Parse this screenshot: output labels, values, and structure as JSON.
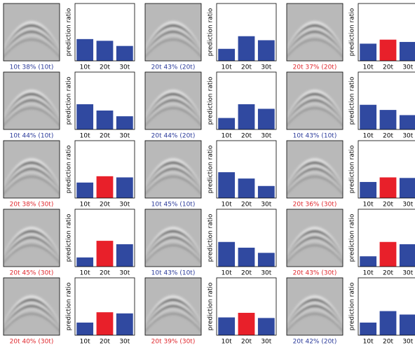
{
  "chart_data": [
    {
      "type": "bar",
      "caption": "10t 38% (10t)",
      "caption_color": "#2a3a9a",
      "ylabel": "prediction ratio",
      "categories": [
        "10t",
        "20t",
        "30t"
      ],
      "values": [
        0.38,
        0.35,
        0.26
      ],
      "colors": [
        "#3049a0",
        "#3049a0",
        "#3049a0"
      ],
      "ylim": [
        0,
        1
      ]
    },
    {
      "type": "bar",
      "caption": "20t 43% (20t)",
      "caption_color": "#2a3a9a",
      "ylabel": "prediction ratio",
      "categories": [
        "10t",
        "20t",
        "30t"
      ],
      "values": [
        0.21,
        0.43,
        0.36
      ],
      "colors": [
        "#3049a0",
        "#3049a0",
        "#3049a0"
      ],
      "ylim": [
        0,
        1
      ]
    },
    {
      "type": "bar",
      "caption": "20t 37% (20t)",
      "caption_color": "#e0282e",
      "ylabel": "prediction ratio",
      "categories": [
        "10t",
        "20t",
        "30t"
      ],
      "values": [
        0.3,
        0.37,
        0.33
      ],
      "colors": [
        "#3049a0",
        "#e8202a",
        "#3049a0"
      ],
      "ylim": [
        0,
        1
      ]
    },
    {
      "type": "bar",
      "caption": "10t 44% (10t)",
      "caption_color": "#2a3a9a",
      "ylabel": "prediction ratio",
      "categories": [
        "10t",
        "20t",
        "30t"
      ],
      "values": [
        0.44,
        0.33,
        0.23
      ],
      "colors": [
        "#3049a0",
        "#3049a0",
        "#3049a0"
      ],
      "ylim": [
        0,
        1
      ]
    },
    {
      "type": "bar",
      "caption": "20t 44% (20t)",
      "caption_color": "#2a3a9a",
      "ylabel": "prediction ratio",
      "categories": [
        "10t",
        "20t",
        "30t"
      ],
      "values": [
        0.2,
        0.44,
        0.36
      ],
      "colors": [
        "#3049a0",
        "#3049a0",
        "#3049a0"
      ],
      "ylim": [
        0,
        1
      ]
    },
    {
      "type": "bar",
      "caption": "10t 43% (10t)",
      "caption_color": "#2a3a9a",
      "ylabel": "prediction ratio",
      "categories": [
        "10t",
        "20t",
        "30t"
      ],
      "values": [
        0.43,
        0.34,
        0.25
      ],
      "colors": [
        "#3049a0",
        "#3049a0",
        "#3049a0"
      ],
      "ylim": [
        0,
        1
      ]
    },
    {
      "type": "bar",
      "caption": "20t 38% (30t)",
      "caption_color": "#e0282e",
      "ylabel": "prediction ratio",
      "categories": [
        "10t",
        "20t",
        "30t"
      ],
      "values": [
        0.27,
        0.38,
        0.36
      ],
      "colors": [
        "#3049a0",
        "#e8202a",
        "#3049a0"
      ],
      "ylim": [
        0,
        1
      ]
    },
    {
      "type": "bar",
      "caption": "10t 45% (10t)",
      "caption_color": "#2a3a9a",
      "ylabel": "prediction ratio",
      "categories": [
        "10t",
        "20t",
        "30t"
      ],
      "values": [
        0.45,
        0.34,
        0.21
      ],
      "colors": [
        "#3049a0",
        "#3049a0",
        "#3049a0"
      ],
      "ylim": [
        0,
        1
      ]
    },
    {
      "type": "bar",
      "caption": "20t 36% (30t)",
      "caption_color": "#e0282e",
      "ylabel": "prediction ratio",
      "categories": [
        "10t",
        "20t",
        "30t"
      ],
      "values": [
        0.28,
        0.36,
        0.35
      ],
      "colors": [
        "#3049a0",
        "#e8202a",
        "#3049a0"
      ],
      "ylim": [
        0,
        1
      ]
    },
    {
      "type": "bar",
      "caption": "20t 45% (30t)",
      "caption_color": "#e0282e",
      "ylabel": "prediction ratio",
      "categories": [
        "10t",
        "20t",
        "30t"
      ],
      "values": [
        0.16,
        0.45,
        0.39
      ],
      "colors": [
        "#3049a0",
        "#e8202a",
        "#3049a0"
      ],
      "ylim": [
        0,
        1
      ]
    },
    {
      "type": "bar",
      "caption": "10t 43% (10t)",
      "caption_color": "#2a3a9a",
      "ylabel": "prediction ratio",
      "categories": [
        "10t",
        "20t",
        "30t"
      ],
      "values": [
        0.43,
        0.33,
        0.24
      ],
      "colors": [
        "#3049a0",
        "#3049a0",
        "#3049a0"
      ],
      "ylim": [
        0,
        1
      ]
    },
    {
      "type": "bar",
      "caption": "20t 43% (30t)",
      "caption_color": "#e0282e",
      "ylabel": "prediction ratio",
      "categories": [
        "10t",
        "20t",
        "30t"
      ],
      "values": [
        0.18,
        0.43,
        0.39
      ],
      "colors": [
        "#3049a0",
        "#e8202a",
        "#3049a0"
      ],
      "ylim": [
        0,
        1
      ]
    },
    {
      "type": "bar",
      "caption": "20t 40% (30t)",
      "caption_color": "#e0282e",
      "ylabel": "prediction ratio",
      "categories": [
        "10t",
        "20t",
        "30t"
      ],
      "values": [
        0.22,
        0.4,
        0.38
      ],
      "colors": [
        "#3049a0",
        "#e8202a",
        "#3049a0"
      ],
      "ylim": [
        0,
        1
      ]
    },
    {
      "type": "bar",
      "caption": "20t 39% (30t)",
      "caption_color": "#e0282e",
      "ylabel": "prediction ratio",
      "categories": [
        "10t",
        "20t",
        "30t"
      ],
      "values": [
        0.31,
        0.39,
        0.3
      ],
      "colors": [
        "#3049a0",
        "#e8202a",
        "#3049a0"
      ],
      "ylim": [
        0,
        1
      ]
    },
    {
      "type": "bar",
      "caption": "20t 42% (20t)",
      "caption_color": "#2a3a9a",
      "ylabel": "prediction ratio",
      "categories": [
        "10t",
        "20t",
        "30t"
      ],
      "values": [
        0.22,
        0.42,
        0.36
      ],
      "colors": [
        "#3049a0",
        "#3049a0",
        "#3049a0"
      ],
      "ylim": [
        0,
        1
      ]
    }
  ]
}
